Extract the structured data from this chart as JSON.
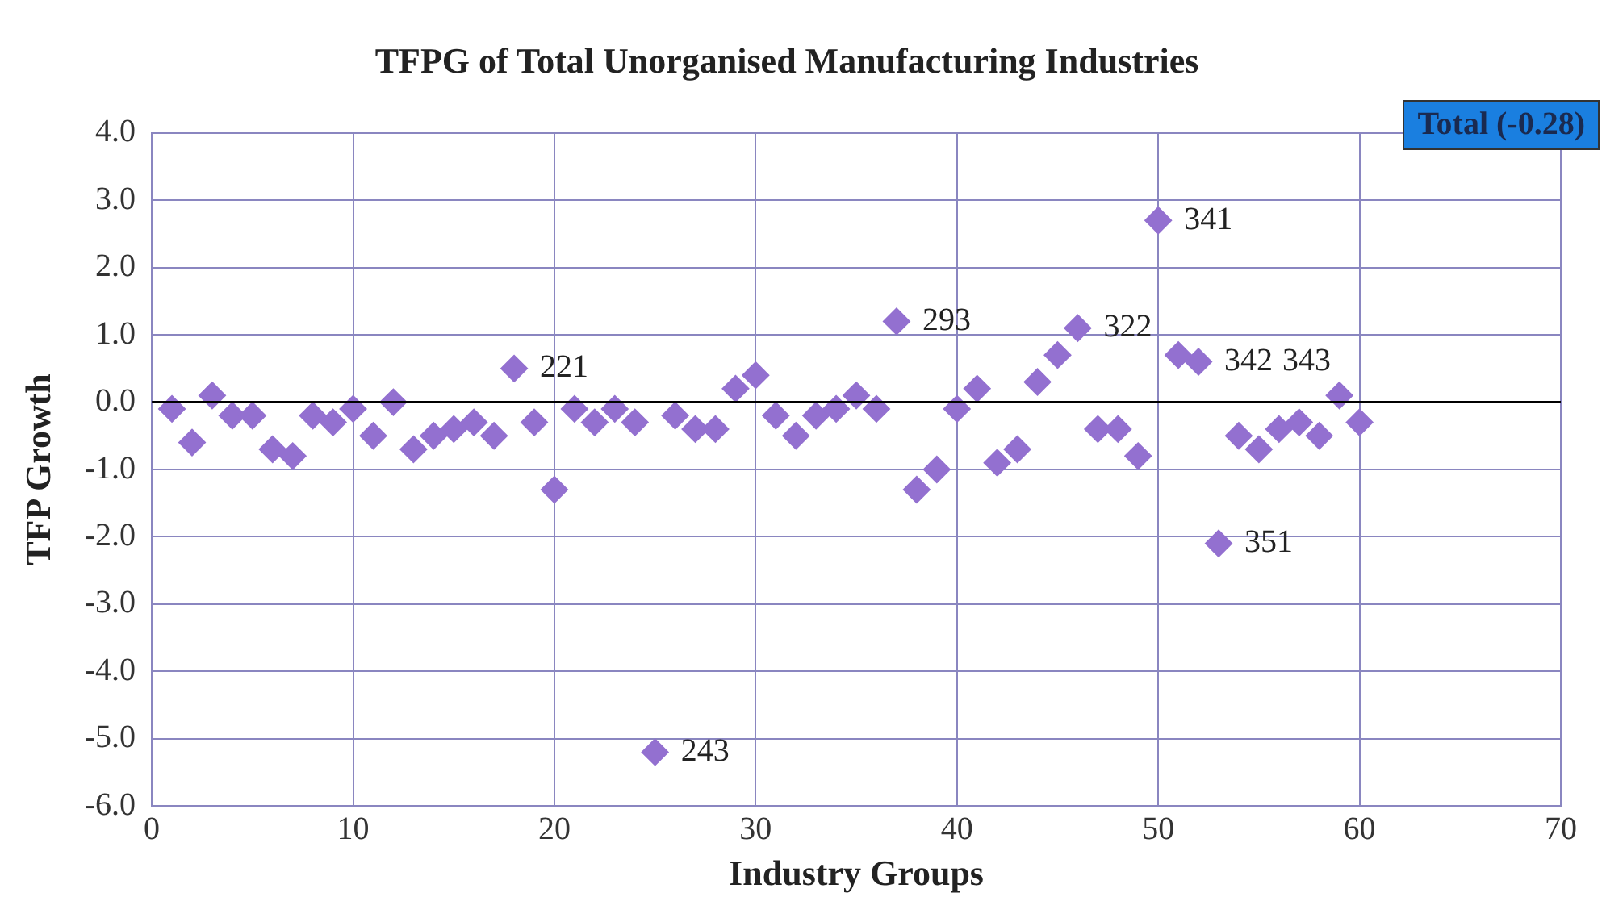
{
  "chart_data": {
    "type": "scatter",
    "title": "TFPG of Total Unorganised Manufacturing Industries",
    "xlabel": "Industry Groups",
    "ylabel": "TFP Growth",
    "x": [
      1,
      2,
      3,
      4,
      5,
      6,
      7,
      8,
      9,
      10,
      11,
      12,
      13,
      14,
      15,
      16,
      17,
      18,
      19,
      20,
      21,
      22,
      23,
      24,
      25,
      26,
      27,
      28,
      29,
      30,
      31,
      32,
      33,
      34,
      35,
      36,
      37,
      38,
      39,
      40,
      41,
      42,
      43,
      44,
      45,
      46,
      47,
      48,
      49,
      50,
      51,
      52,
      53,
      54,
      55,
      56,
      57,
      58,
      59,
      60
    ],
    "series": [
      {
        "color": "#9370d0",
        "values": [
          -0.1,
          -0.6,
          0.1,
          -0.2,
          -0.2,
          -0.7,
          -0.8,
          -0.2,
          -0.3,
          -0.1,
          -0.5,
          0.0,
          -0.7,
          -0.5,
          -0.4,
          -0.3,
          -0.5,
          0.5,
          -0.3,
          -1.3,
          -0.1,
          -0.3,
          -0.1,
          -0.3,
          -5.2,
          -0.2,
          -0.4,
          -0.4,
          0.2,
          0.4,
          -0.2,
          -0.5,
          -0.2,
          -0.1,
          0.1,
          -0.1,
          1.2,
          -1.3,
          -1.0,
          -0.1,
          0.2,
          -0.9,
          -0.7,
          0.3,
          0.7,
          1.1,
          -0.4,
          -0.4,
          -0.8,
          2.7,
          0.7,
          0.6,
          -2.1,
          -0.5,
          -0.7,
          -0.4,
          -0.3,
          -0.5,
          0.1,
          -0.3
        ]
      }
    ],
    "xlim": [
      0,
      70
    ],
    "xticks": [
      0,
      10,
      20,
      30,
      40,
      50,
      60,
      70
    ],
    "ylim": [
      -6,
      4
    ],
    "yticks": [
      {
        "value": -6,
        "label": "-6.0"
      },
      {
        "value": -5,
        "label": "-5.0"
      },
      {
        "value": -4,
        "label": "-4.0"
      },
      {
        "value": -3,
        "label": "-3.0"
      },
      {
        "value": -2,
        "label": "-2.0"
      },
      {
        "value": -1,
        "label": "-1.0"
      },
      {
        "value": 0,
        "label": "0.0"
      },
      {
        "value": 1,
        "label": "1.0"
      },
      {
        "value": 2,
        "label": "2.0"
      },
      {
        "value": 3,
        "label": "3.0"
      },
      {
        "value": 4,
        "label": "4.0"
      }
    ],
    "ref_lines": [
      {
        "axis": "y",
        "value": 0,
        "color": "#000000"
      }
    ],
    "grid": true,
    "marker": "diamond",
    "legend": false,
    "annotations": [
      {
        "text": "221",
        "x": 18,
        "y": 0.5
      },
      {
        "text": "243",
        "x": 25,
        "y": -5.2
      },
      {
        "text": "293",
        "x": 37,
        "y": 1.2
      },
      {
        "text": "322",
        "x": 46,
        "y": 1.1
      },
      {
        "text": "341",
        "x": 50,
        "y": 2.7
      },
      {
        "text": "342",
        "x": 52,
        "y": 0.6
      },
      {
        "text": "343",
        "x": 52,
        "y": 0.6
      },
      {
        "text": "351",
        "x": 53,
        "y": -2.1
      },
      "Total (-0.28)"
    ]
  }
}
